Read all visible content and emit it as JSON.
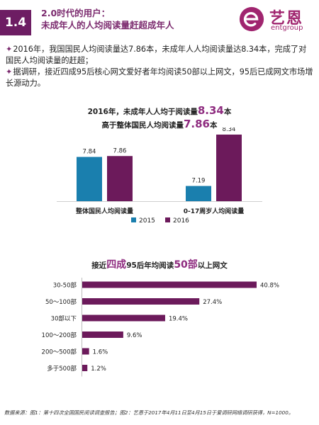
{
  "header": {
    "section_number": "1.4",
    "title_line1": "2.0时代的用户：",
    "title_line2": "未成年人的人均阅读量赶超成年人",
    "logo_cn": "艺恩",
    "logo_en": "entgroup"
  },
  "intro": {
    "bullet": "✦",
    "paragraph1": "2016年，我国国民人均阅读量达7.86本，未成年人人均阅读量达8.34本，完成了对国民人均阅读量的赶超；",
    "paragraph2": "据调研，接近四成95后核心网文爱好者年均阅读50部以上网文，95后已成网文市场增长源动力。"
  },
  "chart1_title": {
    "part1": "2016年，未成年人人均于阅读量",
    "highlight1": "8.34",
    "part2": "本",
    "part3": "高于整体国民人均阅读量",
    "highlight2": "7.86",
    "part4": "本"
  },
  "chart2_title": {
    "part1": "接近",
    "highlight1": "四成",
    "part2": "95后年均阅读",
    "highlight2": "50部",
    "part3": "以上网文"
  },
  "footnote": "数据来源：图1：第十四次全国国民阅读调查报告；图2：艺恩于2017年4月11日至4月15日于爱调研网络调研获得，N=1000。",
  "colors": {
    "brand_purple": "#6d1d63",
    "series_2015": "#1a7fae",
    "series_2016": "#6c1a5b"
  },
  "chart_data": [
    {
      "type": "bar",
      "categories": [
        "整体国民人均阅读量",
        "0-17周岁人均阅读量"
      ],
      "series": [
        {
          "name": "2015",
          "values": [
            7.84,
            7.19
          ]
        },
        {
          "name": "2016",
          "values": [
            7.86,
            8.34
          ]
        }
      ],
      "value_labels": [
        [
          "7.84",
          "7.19"
        ],
        [
          "7.86",
          "8.34"
        ]
      ],
      "legend": "bottom",
      "grid": false
    },
    {
      "type": "bar",
      "orientation": "horizontal",
      "categories": [
        "30-50部",
        "50～100部",
        "30部以下",
        "100～200部",
        "200～500部",
        "多于500部"
      ],
      "values": [
        40.8,
        27.4,
        19.4,
        9.6,
        1.6,
        1.2
      ],
      "value_labels": [
        "40.8%",
        "27.4%",
        "19.4%",
        "9.6%",
        "1.6%",
        "1.2%"
      ],
      "grid": false
    }
  ]
}
